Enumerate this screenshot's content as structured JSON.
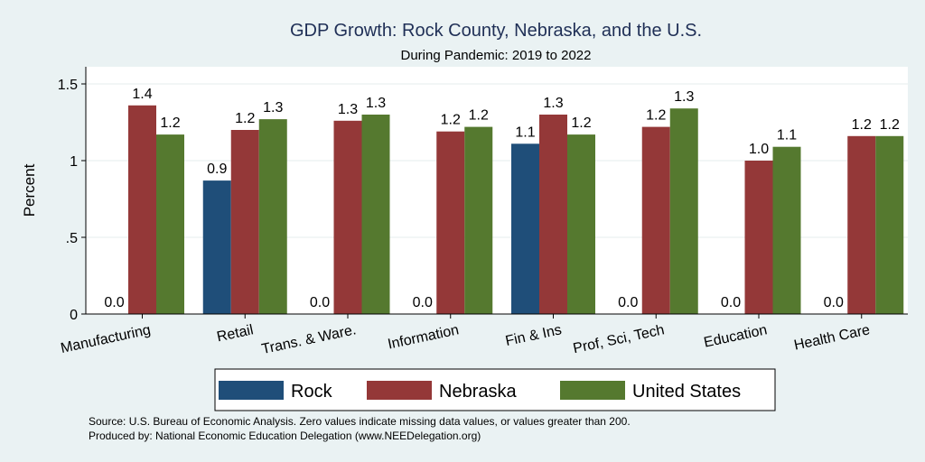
{
  "chart_data": {
    "type": "bar",
    "title": "GDP Growth: Rock County, Nebraska, and the U.S.",
    "subtitle": "During Pandemic: 2019 to 2022",
    "ylabel": "Percent",
    "xlabel": "",
    "ylim": [
      0,
      1.6
    ],
    "yticks": [
      0,
      0.5,
      1,
      1.5
    ],
    "ytick_labels": [
      "0",
      ".5",
      "1",
      "1.5"
    ],
    "grid": true,
    "legend_position": "bottom",
    "categories": [
      "Manufacturing",
      "Retail",
      "Trans. & Ware.",
      "Information",
      "Fin & Ins",
      "Prof, Sci, Tech",
      "Education",
      "Health Care"
    ],
    "series": [
      {
        "name": "Rock",
        "color": "#1f4e79",
        "values": [
          0,
          0.87,
          0,
          0,
          1.11,
          0,
          0,
          0
        ],
        "labels": [
          "0.0",
          "0.9",
          "0.0",
          "0.0",
          "1.1",
          "0.0",
          "0.0",
          "0.0"
        ]
      },
      {
        "name": "Nebraska",
        "color": "#943838",
        "values": [
          1.36,
          1.2,
          1.26,
          1.19,
          1.3,
          1.22,
          1.0,
          1.16
        ],
        "labels": [
          "1.4",
          "1.2",
          "1.3",
          "1.2",
          "1.3",
          "1.2",
          "1.0",
          "1.2"
        ]
      },
      {
        "name": "United States",
        "color": "#55792f",
        "values": [
          1.17,
          1.27,
          1.3,
          1.22,
          1.17,
          1.34,
          1.09,
          1.16
        ],
        "labels": [
          "1.2",
          "1.3",
          "1.3",
          "1.2",
          "1.2",
          "1.3",
          "1.1",
          "1.2"
        ]
      }
    ],
    "notes": [
      "Source: U.S. Bureau of Economic Analysis. Zero values indicate missing data values, or values greater than 200.",
      "Produced by: National Economic Education Delegation (www.NEEDelegation.org)"
    ]
  }
}
